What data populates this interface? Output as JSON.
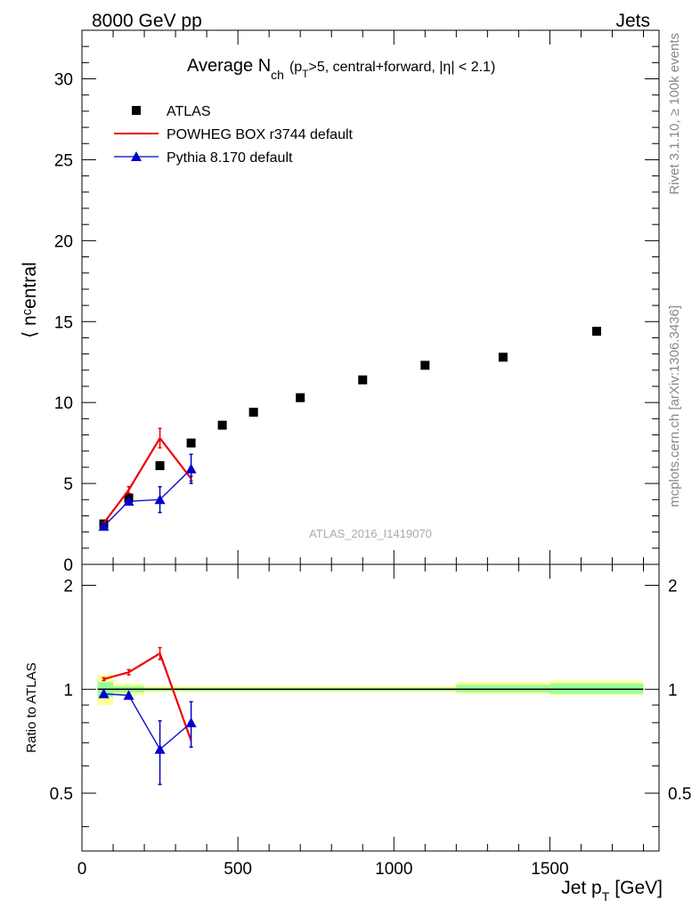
{
  "header": {
    "left": "8000 GeV pp",
    "right": "Jets",
    "side_top": "Rivet 3.1.10, ≥ 100k events",
    "side_bottom": "mcplots.cern.ch [arXiv:1306.3436]",
    "watermark": "ATLAS_2016_I1419070"
  },
  "chart_data": [
    {
      "type": "scatter",
      "title_main": "Average N",
      "title_sub": "ch",
      "title_rest": "(p",
      "title_rest_sub": "T",
      "title_rest2": ">5, central+forward, |η| < 2.1)",
      "ylabel": "⟨ nᶜentral",
      "ylim": [
        0,
        33
      ],
      "xlim": [
        0,
        1850
      ],
      "yticks": [
        0,
        5,
        10,
        15,
        20,
        25,
        30
      ],
      "legend": [
        "ATLAS",
        "POWHEG BOX r3744 default",
        "Pythia 8.170 default"
      ],
      "series": [
        {
          "name": "ATLAS",
          "color": "#000000",
          "x": [
            70,
            150,
            250,
            350,
            450,
            550,
            700,
            900,
            1100,
            1350,
            1650
          ],
          "y": [
            2.5,
            4.1,
            6.1,
            7.5,
            8.6,
            9.4,
            10.3,
            11.4,
            12.3,
            12.8,
            14.4
          ]
        },
        {
          "name": "POWHEG BOX r3744 default",
          "color": "#ee0000",
          "x": [
            70,
            150,
            250,
            350
          ],
          "y": [
            2.55,
            4.6,
            7.8,
            5.3
          ],
          "err": [
            0.05,
            0.2,
            0.6,
            0.15
          ]
        },
        {
          "name": "Pythia 8.170 default",
          "color": "#0000cc",
          "x": [
            70,
            150,
            250,
            350
          ],
          "y": [
            2.35,
            3.9,
            4.0,
            5.9
          ],
          "err": [
            0.1,
            0.15,
            0.8,
            0.9
          ]
        }
      ]
    },
    {
      "type": "line",
      "ylabel": "Ratio to ATLAS",
      "xlabel": "Jet p",
      "xlabel_sub": "T",
      "xlabel_unit": "[GeV]",
      "ylim": [
        0.34,
        2.3
      ],
      "xlim": [
        0,
        1850
      ],
      "xticks": [
        0,
        500,
        1000,
        1500
      ],
      "yticks": [
        0.5,
        1,
        2
      ],
      "bands": [
        {
          "x0": 50,
          "x1": 100,
          "green": [
            0.95,
            1.05
          ],
          "yellow": [
            0.9,
            1.1
          ]
        },
        {
          "x0": 100,
          "x1": 200,
          "green": [
            0.98,
            1.02
          ],
          "yellow": [
            0.96,
            1.04
          ]
        },
        {
          "x0": 200,
          "x1": 400,
          "green": [
            0.99,
            1.01
          ],
          "yellow": [
            0.98,
            1.02
          ]
        },
        {
          "x0": 400,
          "x1": 600,
          "green": [
            0.99,
            1.01
          ],
          "yellow": [
            0.98,
            1.02
          ]
        },
        {
          "x0": 600,
          "x1": 1200,
          "green": [
            0.99,
            1.01
          ],
          "yellow": [
            0.98,
            1.02
          ]
        },
        {
          "x0": 1200,
          "x1": 1500,
          "green": [
            0.98,
            1.03
          ],
          "yellow": [
            0.97,
            1.05
          ]
        },
        {
          "x0": 1500,
          "x1": 1800,
          "green": [
            0.97,
            1.04
          ],
          "yellow": [
            0.96,
            1.06
          ]
        }
      ],
      "series": [
        {
          "name": "POWHEG BOX r3744 default",
          "color": "#ee0000",
          "x": [
            70,
            150,
            250,
            350
          ],
          "y": [
            1.07,
            1.12,
            1.27,
            0.71
          ],
          "err": [
            0.01,
            0.02,
            0.05,
            0.0
          ]
        },
        {
          "name": "Pythia 8.170 default",
          "color": "#0000cc",
          "x": [
            70,
            150,
            250,
            350
          ],
          "y": [
            0.97,
            0.96,
            0.67,
            0.8
          ],
          "err": [
            0.0,
            0.0,
            0.14,
            0.12
          ]
        }
      ]
    }
  ]
}
